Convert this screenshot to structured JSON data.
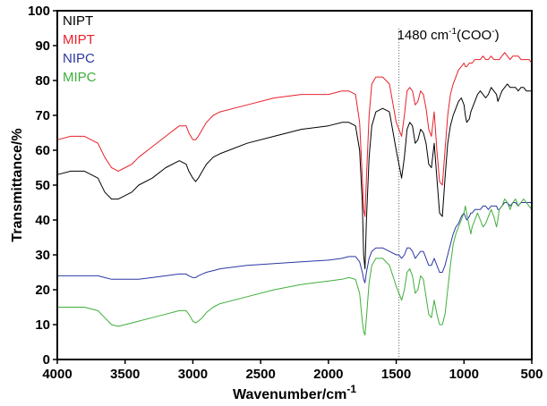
{
  "chart_data": {
    "type": "line",
    "xlabel": "Wavenumber/cm",
    "xlabel_sup": "-1",
    "ylabel": "Transmittance/%",
    "xlim": [
      4000,
      500
    ],
    "ylim": [
      0,
      100
    ],
    "x_reversed": true,
    "xticks": [
      4000,
      3500,
      3000,
      2500,
      2000,
      1500,
      1000,
      500
    ],
    "yticks": [
      0,
      10,
      20,
      30,
      40,
      50,
      60,
      70,
      80,
      90,
      100
    ],
    "legend_position": "top-left",
    "annotation": {
      "x": 1480,
      "text_parts": [
        "1480 cm",
        "-1",
        "(COO",
        "-",
        ")"
      ]
    },
    "series": [
      {
        "name": "NIPT",
        "color": "#000000",
        "x": [
          4000,
          3900,
          3800,
          3700,
          3650,
          3600,
          3550,
          3500,
          3450,
          3400,
          3300,
          3200,
          3100,
          3050,
          3030,
          3000,
          2980,
          2960,
          2930,
          2900,
          2850,
          2800,
          2600,
          2400,
          2200,
          2000,
          1900,
          1850,
          1800,
          1770,
          1750,
          1740,
          1730,
          1720,
          1700,
          1680,
          1650,
          1600,
          1550,
          1500,
          1480,
          1460,
          1440,
          1420,
          1400,
          1380,
          1360,
          1340,
          1320,
          1300,
          1280,
          1260,
          1240,
          1220,
          1200,
          1180,
          1160,
          1140,
          1120,
          1100,
          1080,
          1060,
          1040,
          1020,
          1000,
          990,
          980,
          960,
          950,
          940,
          920,
          900,
          880,
          860,
          840,
          820,
          800,
          780,
          760,
          750,
          740,
          720,
          700,
          680,
          660,
          640,
          620,
          600,
          580,
          560,
          540,
          520,
          500
        ],
        "y": [
          53,
          54,
          54,
          52,
          48,
          46,
          46,
          47,
          48,
          50,
          52,
          55,
          57,
          56,
          54,
          52,
          51,
          52,
          54,
          56,
          58,
          59,
          62,
          64,
          66,
          67,
          68,
          68,
          67,
          60,
          45,
          30,
          26,
          40,
          58,
          67,
          71,
          72,
          71,
          60,
          56,
          52,
          58,
          66,
          68,
          67,
          62,
          63,
          66,
          65,
          62,
          56,
          55,
          62,
          52,
          42,
          41,
          52,
          62,
          67,
          70,
          72,
          74,
          75,
          73,
          70,
          68,
          69,
          71,
          72,
          74,
          76,
          77,
          76,
          75,
          76,
          78,
          77,
          76,
          74,
          75,
          77,
          78,
          79,
          78,
          78,
          78,
          77,
          78,
          78,
          77,
          77,
          77
        ]
      },
      {
        "name": "MIPT",
        "color": "#e8202a",
        "x": [
          4000,
          3900,
          3800,
          3700,
          3650,
          3600,
          3550,
          3500,
          3450,
          3400,
          3300,
          3200,
          3100,
          3050,
          3030,
          3000,
          2980,
          2960,
          2930,
          2900,
          2850,
          2800,
          2600,
          2400,
          2200,
          2000,
          1900,
          1850,
          1800,
          1770,
          1750,
          1740,
          1730,
          1720,
          1700,
          1680,
          1650,
          1600,
          1550,
          1500,
          1480,
          1460,
          1440,
          1420,
          1400,
          1380,
          1360,
          1340,
          1320,
          1300,
          1280,
          1260,
          1240,
          1220,
          1200,
          1180,
          1160,
          1140,
          1120,
          1100,
          1080,
          1060,
          1040,
          1020,
          1000,
          990,
          980,
          960,
          950,
          940,
          920,
          900,
          880,
          860,
          840,
          820,
          800,
          780,
          760,
          750,
          740,
          720,
          700,
          680,
          660,
          640,
          620,
          600,
          580,
          560,
          540,
          520,
          500
        ],
        "y": [
          63,
          64,
          64,
          62,
          58,
          55,
          54,
          55,
          56,
          58,
          61,
          64,
          67,
          67,
          65,
          63,
          63,
          64,
          66,
          68,
          70,
          71,
          73,
          75,
          76,
          76,
          77,
          77,
          76,
          68,
          52,
          43,
          41,
          52,
          70,
          79,
          81,
          81,
          79,
          68,
          66,
          64,
          70,
          77,
          78,
          77,
          73,
          74,
          77,
          76,
          72,
          66,
          64,
          71,
          60,
          51,
          50,
          60,
          70,
          76,
          79,
          81,
          83,
          84,
          85,
          84,
          84,
          85,
          85,
          85,
          86,
          86,
          86,
          87,
          86,
          86,
          87,
          86,
          86,
          86,
          86,
          87,
          88,
          87,
          86,
          87,
          87,
          87,
          86,
          86,
          86,
          86,
          85
        ]
      },
      {
        "name": "NIPC",
        "color": "#2c37a3",
        "x": [
          4000,
          3900,
          3800,
          3700,
          3650,
          3600,
          3550,
          3500,
          3450,
          3400,
          3300,
          3200,
          3100,
          3050,
          3030,
          3000,
          2980,
          2960,
          2930,
          2900,
          2850,
          2800,
          2600,
          2400,
          2200,
          2000,
          1900,
          1850,
          1800,
          1770,
          1750,
          1740,
          1730,
          1720,
          1700,
          1680,
          1650,
          1600,
          1550,
          1500,
          1480,
          1460,
          1440,
          1420,
          1400,
          1380,
          1360,
          1340,
          1320,
          1300,
          1280,
          1260,
          1240,
          1220,
          1200,
          1180,
          1160,
          1140,
          1120,
          1100,
          1080,
          1060,
          1040,
          1020,
          1000,
          990,
          980,
          960,
          950,
          940,
          920,
          900,
          880,
          860,
          840,
          820,
          800,
          780,
          760,
          750,
          740,
          720,
          700,
          680,
          660,
          640,
          620,
          600,
          580,
          560,
          540,
          520,
          500
        ],
        "y": [
          24,
          24,
          24,
          24,
          23.5,
          23,
          23,
          23,
          23,
          23,
          23.5,
          24,
          24.5,
          24.5,
          24,
          23.5,
          23.5,
          24,
          24.5,
          25,
          25.5,
          26,
          27,
          27.5,
          28,
          28.5,
          29,
          29.5,
          29.5,
          28,
          25,
          23,
          22,
          25,
          29,
          31,
          32,
          32,
          31,
          30,
          30,
          29,
          30,
          32,
          32,
          31,
          29,
          30,
          31,
          31,
          29,
          27,
          27,
          29,
          27,
          25,
          25,
          27,
          30,
          33,
          36,
          38,
          39,
          41,
          42,
          41,
          40,
          41,
          42,
          42,
          43,
          43,
          43,
          44,
          44,
          43,
          44,
          44,
          44,
          43,
          43,
          44,
          45,
          45,
          44,
          45,
          45,
          44,
          45,
          45,
          45,
          45,
          45
        ]
      },
      {
        "name": "MIPC",
        "color": "#3fae3b",
        "x": [
          4000,
          3900,
          3800,
          3700,
          3650,
          3600,
          3550,
          3500,
          3450,
          3400,
          3300,
          3200,
          3100,
          3050,
          3030,
          3000,
          2980,
          2960,
          2930,
          2900,
          2850,
          2800,
          2600,
          2400,
          2200,
          2000,
          1900,
          1850,
          1800,
          1770,
          1750,
          1740,
          1730,
          1720,
          1700,
          1680,
          1650,
          1600,
          1550,
          1500,
          1480,
          1460,
          1440,
          1420,
          1400,
          1380,
          1360,
          1340,
          1320,
          1300,
          1280,
          1260,
          1240,
          1220,
          1200,
          1180,
          1160,
          1140,
          1120,
          1100,
          1080,
          1060,
          1040,
          1020,
          1000,
          990,
          980,
          960,
          950,
          940,
          920,
          900,
          880,
          860,
          840,
          820,
          800,
          780,
          760,
          750,
          740,
          720,
          700,
          680,
          660,
          640,
          620,
          600,
          580,
          560,
          540,
          520,
          500
        ],
        "y": [
          15,
          15,
          15,
          14,
          12,
          10,
          9.5,
          10,
          10.5,
          11,
          12,
          13,
          14,
          14,
          13,
          11,
          10.5,
          11,
          12,
          13.5,
          15,
          16,
          18,
          20,
          21.5,
          22.5,
          23,
          23.5,
          23,
          19,
          11,
          8,
          7,
          12,
          22,
          27,
          29,
          29,
          27,
          21,
          19,
          17,
          20,
          25,
          26,
          24,
          19,
          20,
          24,
          23,
          18,
          13,
          12,
          17,
          13,
          10,
          10,
          13,
          20,
          27,
          33,
          36,
          38,
          40,
          42,
          44,
          42,
          38,
          36,
          38,
          40,
          42,
          40,
          38,
          39,
          41,
          43,
          41,
          38,
          40,
          43,
          44,
          46,
          45,
          43,
          45,
          46,
          44,
          45,
          46,
          45,
          44,
          43
        ]
      }
    ]
  }
}
